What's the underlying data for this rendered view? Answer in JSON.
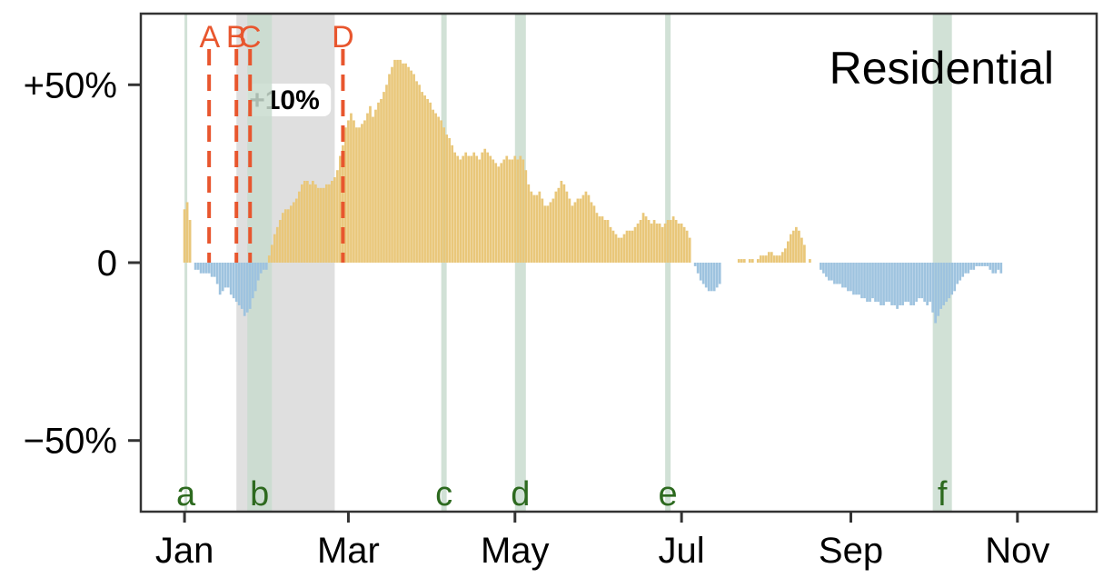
{
  "chart_data": {
    "type": "bar",
    "title": "Residential",
    "y_ticks": [
      {
        "value": 50,
        "label": "+50%"
      },
      {
        "value": 0,
        "label": "0"
      },
      {
        "value": -50,
        "label": "−50%"
      }
    ],
    "x_ticks": [
      {
        "date": "2020-01-01",
        "label": "Jan"
      },
      {
        "date": "2020-03-01",
        "label": "Mar"
      },
      {
        "date": "2020-05-01",
        "label": "May"
      },
      {
        "date": "2020-07-01",
        "label": "Jul"
      },
      {
        "date": "2020-09-01",
        "label": "Sep"
      },
      {
        "date": "2020-11-01",
        "label": "Nov"
      }
    ],
    "x_range": [
      "2019-12-16",
      "2020-11-30"
    ],
    "y_range": [
      -70,
      70
    ],
    "colors": {
      "positive": "#e9c77a",
      "negative": "#9ec3df",
      "policy_line": "#e8562e",
      "event_band": "#c9dccf",
      "event_label": "#2d6a1f",
      "shaded_band": "#d9d9d9"
    },
    "shaded_band": {
      "start": "2020-01-20",
      "end": "2020-02-25",
      "label": "+10%"
    },
    "policy_lines": [
      {
        "date": "2020-01-10",
        "label": "A"
      },
      {
        "date": "2020-01-20",
        "label": "B"
      },
      {
        "date": "2020-01-25",
        "label": "C"
      },
      {
        "date": "2020-02-28",
        "label": "D"
      }
    ],
    "event_bands": [
      {
        "start": "2020-01-01",
        "end": "2020-01-02",
        "label": "a"
      },
      {
        "start": "2020-01-24",
        "end": "2020-02-02",
        "label": "b"
      },
      {
        "start": "2020-04-04",
        "end": "2020-04-06",
        "label": "c"
      },
      {
        "start": "2020-05-01",
        "end": "2020-05-05",
        "label": "d"
      },
      {
        "start": "2020-06-25",
        "end": "2020-06-27",
        "label": "e"
      },
      {
        "start": "2020-10-01",
        "end": "2020-10-08",
        "label": "f"
      }
    ],
    "series": [
      {
        "start_date": "2020-01-01",
        "values": [
          15,
          17,
          12,
          0,
          -2,
          -2,
          -3,
          -3,
          -3,
          -3,
          -4,
          -4,
          -6,
          -9,
          -8,
          -7,
          -7,
          -9,
          -10,
          -11,
          -12,
          -13,
          -15,
          -14,
          -13,
          -10,
          -8,
          -5,
          -3,
          -2,
          -2,
          2,
          5,
          8,
          10,
          12,
          14,
          15,
          15,
          16,
          17,
          18,
          20,
          22,
          23,
          23,
          22,
          23,
          22,
          21,
          21,
          21,
          22,
          22,
          23,
          24,
          26,
          30,
          33,
          38,
          40,
          42,
          40,
          38,
          38,
          39,
          40,
          42,
          44,
          41,
          43,
          45,
          46,
          48,
          50,
          53,
          55,
          57,
          57,
          57,
          56,
          56,
          55,
          54,
          53,
          51,
          50,
          48,
          47,
          46,
          45,
          43,
          42,
          41,
          40,
          38,
          36,
          35,
          33,
          31,
          30,
          29,
          30,
          31,
          30,
          30,
          31,
          30,
          29,
          31,
          32,
          31,
          30,
          29,
          28,
          27,
          28,
          29,
          30,
          29,
          29,
          30,
          29,
          30,
          29,
          26,
          22,
          20,
          19,
          19,
          20,
          18,
          16,
          16,
          17,
          18,
          20,
          21,
          23,
          22,
          20,
          18,
          16,
          17,
          18,
          18,
          19,
          20,
          19,
          17,
          16,
          14,
          13,
          13,
          12,
          12,
          10,
          9,
          8,
          7,
          7,
          8,
          9,
          9,
          9,
          10,
          11,
          12,
          14,
          13,
          12,
          11,
          12,
          11,
          11,
          10,
          11,
          12,
          12,
          13,
          12,
          11,
          11,
          10,
          9,
          7,
          0,
          -1,
          -3,
          -5,
          -6,
          -7,
          -8,
          -8,
          -8,
          -7,
          -6,
          0,
          0,
          0,
          0,
          0,
          0,
          1,
          1,
          1,
          0,
          1,
          1,
          0,
          1,
          2,
          2,
          2,
          3,
          3,
          2,
          2,
          2,
          3,
          4,
          6,
          8,
          9,
          10,
          9,
          7,
          5,
          0,
          1,
          0,
          0,
          0,
          -2,
          -3,
          -4,
          -5,
          -5,
          -6,
          -6,
          -6,
          -7,
          -7,
          -8,
          -8,
          -9,
          -9,
          -9,
          -10,
          -10,
          -11,
          -11,
          -10,
          -11,
          -11,
          -12,
          -12,
          -11,
          -11,
          -12,
          -12,
          -13,
          -12,
          -12,
          -11,
          -11,
          -12,
          -12,
          -11,
          -10,
          -10,
          -11,
          -12,
          -11,
          -14,
          -17,
          -15,
          -13,
          -12,
          -11,
          -10,
          -9,
          -8,
          -6,
          -5,
          -4,
          -3,
          -3,
          -2,
          -2,
          -1,
          -1,
          -1,
          -1,
          -1,
          -2,
          -3,
          -3,
          -2,
          -3
        ]
      }
    ]
  }
}
